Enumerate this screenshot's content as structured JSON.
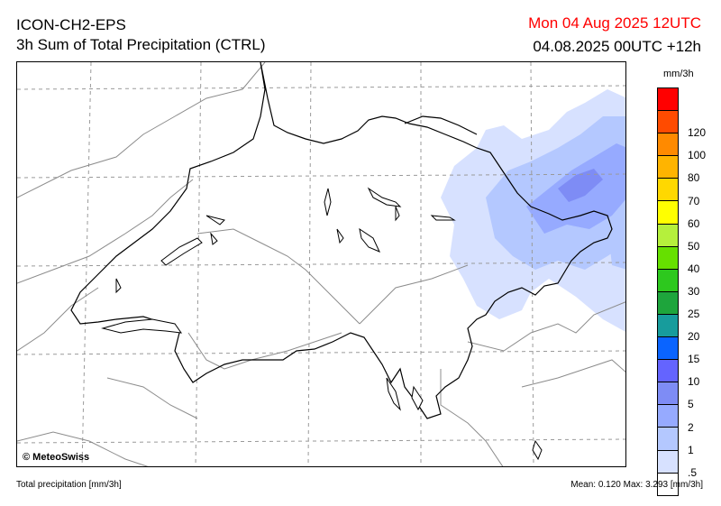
{
  "header": {
    "model": "ICON-CH2-EPS",
    "product": "3h Sum of Total Precipitation (CTRL)",
    "valid_time": "Mon 04 Aug 2025 12UTC",
    "run_time": "04.08.2025 00UTC +12h",
    "valid_color": "#ff0000"
  },
  "map": {
    "credit": "© MeteoSwiss"
  },
  "legend": {
    "unit": "mm/3h",
    "levels": [
      {
        "label": "",
        "color": "#ff0000"
      },
      {
        "label": "120",
        "color": "#ff4b00"
      },
      {
        "label": "100",
        "color": "#ff8a00"
      },
      {
        "label": "80",
        "color": "#ffb400"
      },
      {
        "label": "70",
        "color": "#ffd800"
      },
      {
        "label": "60",
        "color": "#ffff00"
      },
      {
        "label": "50",
        "color": "#b5f03c"
      },
      {
        "label": "40",
        "color": "#66e000"
      },
      {
        "label": "30",
        "color": "#2dc81e"
      },
      {
        "label": "25",
        "color": "#1ea53c"
      },
      {
        "label": "20",
        "color": "#179c9c"
      },
      {
        "label": "15",
        "color": "#0a64ff"
      },
      {
        "label": "10",
        "color": "#6464ff"
      },
      {
        "label": "5",
        "color": "#7e8cf5"
      },
      {
        "label": "2",
        "color": "#96aaff"
      },
      {
        "label": "1",
        "color": "#b4c8ff"
      },
      {
        "label": ".5",
        "color": "#d7e1ff"
      },
      {
        "label": "",
        "color": "#ffffff"
      }
    ]
  },
  "footer": {
    "left": "Total precipitation [mm/3h]",
    "right": "Mean:  0.120 Max:  3.293 [mm/3h]"
  }
}
